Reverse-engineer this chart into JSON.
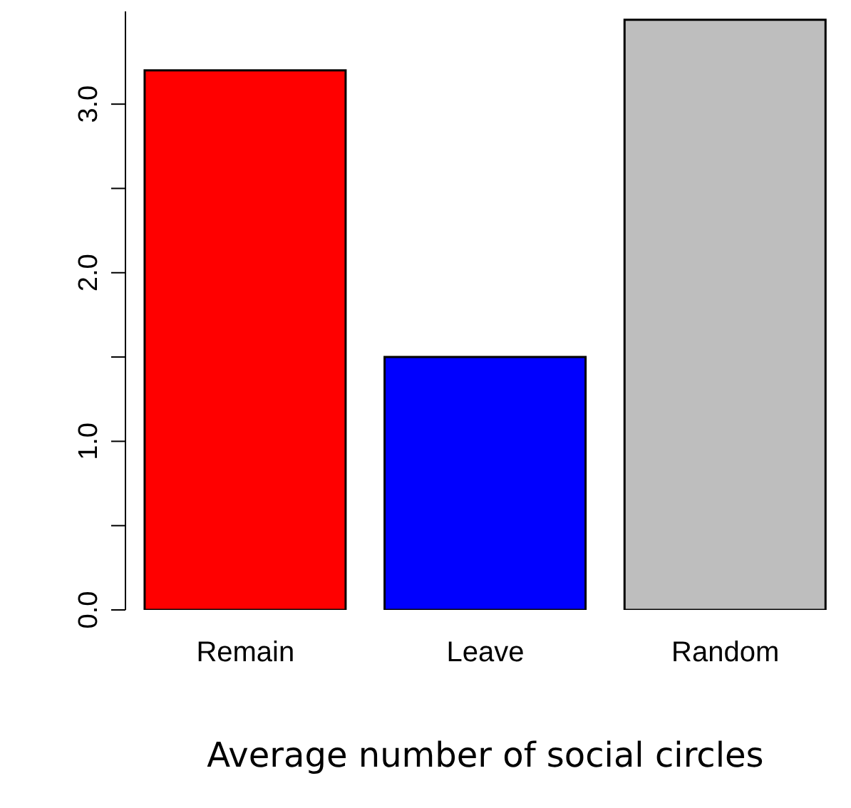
{
  "chart_data": {
    "type": "bar",
    "xlabel": "Average number of social circles",
    "categories": [
      "Remain",
      "Leave",
      "Random"
    ],
    "values": [
      3.2,
      1.5,
      3.5
    ],
    "colors": [
      "#ff0000",
      "#0000ff",
      "#bebebe"
    ],
    "ylim": [
      0,
      3.55
    ],
    "yticks": [
      {
        "value": 0,
        "label": "0.0"
      },
      {
        "value": 0.5,
        "label": null
      },
      {
        "value": 1,
        "label": "1.0"
      },
      {
        "value": 1.5,
        "label": null
      },
      {
        "value": 2,
        "label": "2.0"
      },
      {
        "value": 2.5,
        "label": null
      },
      {
        "value": 3,
        "label": "3.0"
      }
    ],
    "grid": false,
    "legend": false
  }
}
